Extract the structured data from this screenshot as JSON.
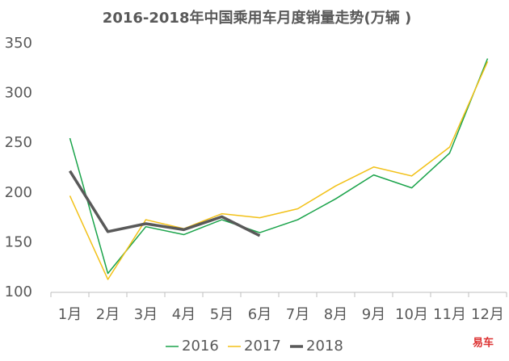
{
  "chart_data": {
    "type": "line",
    "title": "2016-2018年中国乘用车月度销量走势(万辆 )",
    "categories": [
      "1月",
      "2月",
      "3月",
      "4月",
      "5月",
      "6月",
      "7月",
      "8月",
      "9月",
      "10月",
      "11月",
      "12月"
    ],
    "series": [
      {
        "name": "2016",
        "color": "#1aa34a",
        "width": 1.5,
        "values": [
          255,
          119,
          166,
          158,
          173,
          160,
          173,
          194,
          218,
          205,
          240,
          335
        ]
      },
      {
        "name": "2017",
        "color": "#f2c118",
        "width": 1.5,
        "values": [
          197,
          113,
          173,
          164,
          179,
          175,
          184,
          207,
          226,
          217,
          246,
          332
        ]
      },
      {
        "name": "2018",
        "color": "#595959",
        "width": 3.5,
        "values": [
          222,
          161,
          169,
          163,
          176,
          157,
          null,
          null,
          null,
          null,
          null,
          null
        ]
      }
    ],
    "ylim": [
      100,
      350
    ],
    "yticks": [
      100,
      150,
      200,
      250,
      300,
      350
    ],
    "grid": false,
    "legend": "bottom",
    "watermark": "易车"
  }
}
